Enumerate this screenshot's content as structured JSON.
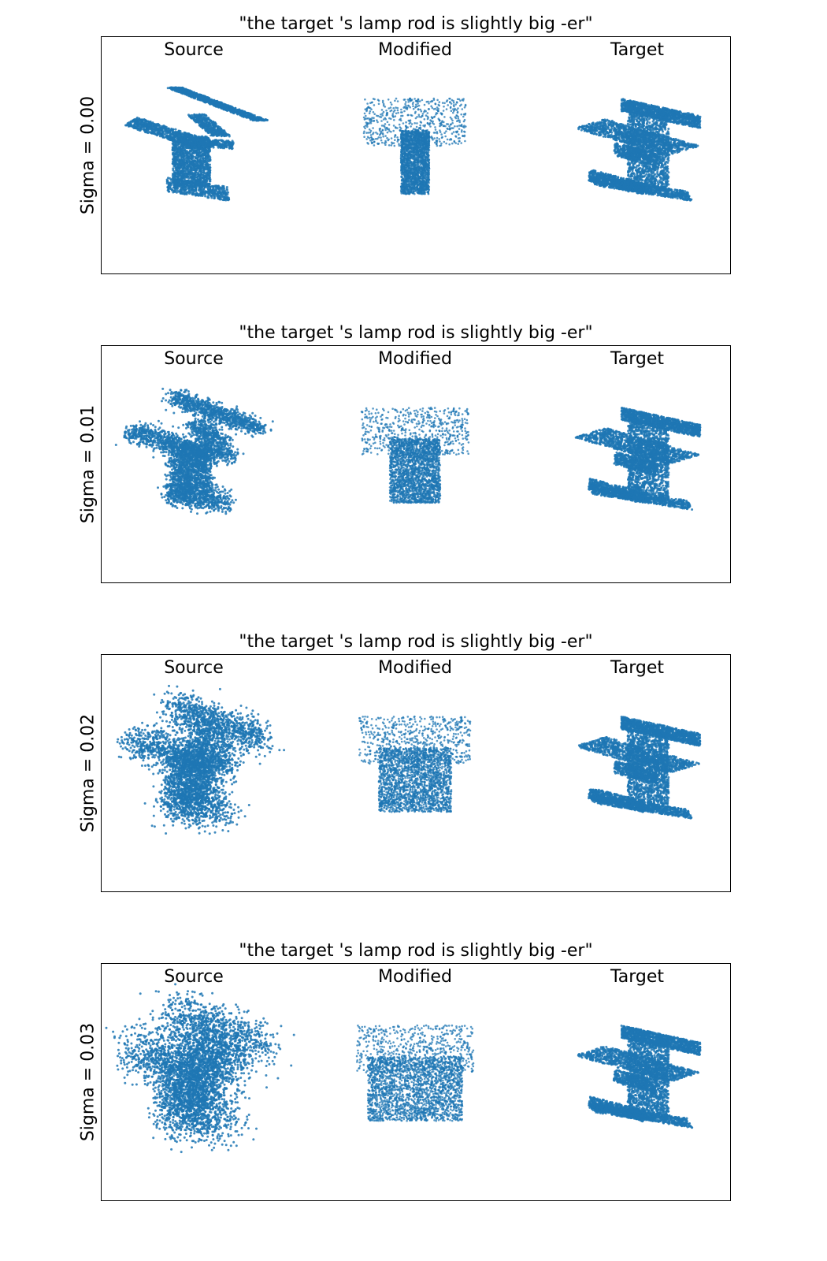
{
  "figure": {
    "point_color": "#1f77b4",
    "panels": [
      {
        "title": "\"the target 's lamp rod is slightly big -er\"",
        "ylabel": "Sigma = 0.00",
        "sigma": 0.0,
        "columns": [
          "Source",
          "Modified",
          "Target"
        ]
      },
      {
        "title": "\"the target 's lamp rod is slightly big -er\"",
        "ylabel": "Sigma = 0.01",
        "sigma": 0.01,
        "columns": [
          "Source",
          "Modified",
          "Target"
        ]
      },
      {
        "title": "\"the target 's lamp rod is slightly big -er\"",
        "ylabel": "Sigma = 0.02",
        "sigma": 0.02,
        "columns": [
          "Source",
          "Modified",
          "Target"
        ]
      },
      {
        "title": "\"the target 's lamp rod is slightly big -er\"",
        "ylabel": "Sigma = 0.03",
        "sigma": 0.03,
        "columns": [
          "Source",
          "Modified",
          "Target"
        ]
      }
    ]
  }
}
